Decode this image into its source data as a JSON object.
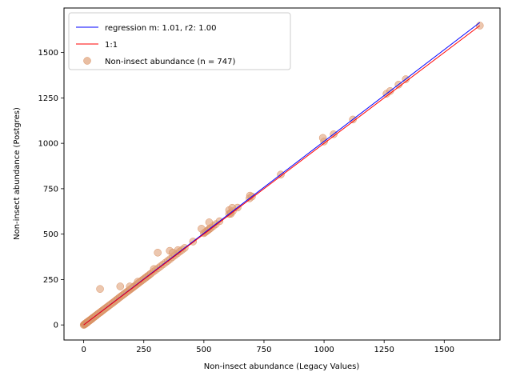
{
  "chart_data": {
    "type": "scatter",
    "xlabel": "Non-insect abundance (Legacy Values)",
    "ylabel": "Non-insect abundance (Postgres)",
    "xlim": [
      -82,
      1732
    ],
    "ylim": [
      -83,
      1745
    ],
    "xticks": [
      0,
      250,
      500,
      750,
      1000,
      1250,
      1500
    ],
    "yticks": [
      0,
      250,
      500,
      750,
      1000,
      1250,
      1500
    ],
    "grid": false,
    "legend_position": "upper-left",
    "lines": [
      {
        "name": "regression m: 1.01, r2: 1.00",
        "color": "#0000ff",
        "x": [
          0,
          1648
        ],
        "y": [
          0,
          1665
        ]
      },
      {
        "name": "1:1",
        "color": "#ff0000",
        "x": [
          0,
          1648
        ],
        "y": [
          0,
          1648
        ]
      }
    ],
    "scatter": {
      "name": "Non-insect abundance (n = 747)",
      "color": "#e0a27a",
      "points": [
        [
          0,
          0
        ],
        [
          2,
          3
        ],
        [
          3,
          2
        ],
        [
          4,
          5
        ],
        [
          5,
          4
        ],
        [
          6,
          7
        ],
        [
          7,
          6
        ],
        [
          8,
          8
        ],
        [
          9,
          10
        ],
        [
          10,
          9
        ],
        [
          11,
          12
        ],
        [
          12,
          11
        ],
        [
          13,
          14
        ],
        [
          14,
          13
        ],
        [
          15,
          15
        ],
        [
          16,
          17
        ],
        [
          17,
          16
        ],
        [
          18,
          19
        ],
        [
          20,
          20
        ],
        [
          22,
          21
        ],
        [
          24,
          25
        ],
        [
          26,
          26
        ],
        [
          28,
          27
        ],
        [
          30,
          31
        ],
        [
          32,
          32
        ],
        [
          34,
          33
        ],
        [
          36,
          37
        ],
        [
          38,
          38
        ],
        [
          40,
          41
        ],
        [
          42,
          42
        ],
        [
          44,
          44
        ],
        [
          46,
          47
        ],
        [
          48,
          48
        ],
        [
          50,
          51
        ],
        [
          52,
          52
        ],
        [
          55,
          56
        ],
        [
          58,
          59
        ],
        [
          60,
          61
        ],
        [
          63,
          64
        ],
        [
          66,
          67
        ],
        [
          70,
          70
        ],
        [
          73,
          74
        ],
        [
          76,
          77
        ],
        [
          80,
          81
        ],
        [
          84,
          85
        ],
        [
          88,
          89
        ],
        [
          92,
          93
        ],
        [
          96,
          97
        ],
        [
          100,
          101
        ],
        [
          105,
          106
        ],
        [
          110,
          111
        ],
        [
          115,
          116
        ],
        [
          120,
          121
        ],
        [
          125,
          126
        ],
        [
          130,
          131
        ],
        [
          135,
          137
        ],
        [
          140,
          141
        ],
        [
          145,
          147
        ],
        [
          150,
          152
        ],
        [
          155,
          157
        ],
        [
          160,
          162
        ],
        [
          165,
          167
        ],
        [
          170,
          172
        ],
        [
          175,
          177
        ],
        [
          180,
          182
        ],
        [
          185,
          187
        ],
        [
          190,
          192
        ],
        [
          195,
          197
        ],
        [
          200,
          202
        ],
        [
          205,
          207
        ],
        [
          210,
          212
        ],
        [
          215,
          217
        ],
        [
          220,
          222
        ],
        [
          225,
          227
        ],
        [
          230,
          232
        ],
        [
          235,
          238
        ],
        [
          240,
          242
        ],
        [
          245,
          248
        ],
        [
          250,
          252
        ],
        [
          255,
          258
        ],
        [
          260,
          262
        ],
        [
          265,
          268
        ],
        [
          270,
          272
        ],
        [
          275,
          278
        ],
        [
          280,
          283
        ],
        [
          290,
          293
        ],
        [
          300,
          303
        ],
        [
          310,
          313
        ],
        [
          320,
          323
        ],
        [
          330,
          333
        ],
        [
          340,
          343
        ],
        [
          350,
          353
        ],
        [
          360,
          363
        ],
        [
          370,
          374
        ],
        [
          380,
          384
        ],
        [
          390,
          394
        ],
        [
          400,
          404
        ],
        [
          410,
          414
        ],
        [
          420,
          424
        ],
        [
          455,
          459
        ],
        [
          500,
          505
        ],
        [
          505,
          510
        ],
        [
          510,
          515
        ],
        [
          515,
          520
        ],
        [
          520,
          525
        ],
        [
          525,
          530
        ],
        [
          530,
          535
        ],
        [
          540,
          545
        ],
        [
          550,
          555
        ],
        [
          565,
          571
        ],
        [
          605,
          611
        ],
        [
          612,
          618
        ],
        [
          620,
          626
        ],
        [
          640,
          646
        ],
        [
          690,
          697
        ],
        [
          700,
          707
        ],
        [
          820,
          828
        ],
        [
          1000,
          1010
        ],
        [
          1040,
          1050
        ],
        [
          1120,
          1131
        ],
        [
          1260,
          1273
        ],
        [
          1275,
          1288
        ],
        [
          1310,
          1323
        ],
        [
          1340,
          1353
        ],
        [
          1648,
          1648
        ],
        [
          68,
          198
        ],
        [
          152,
          212
        ],
        [
          192,
          212
        ],
        [
          225,
          238
        ],
        [
          292,
          308
        ],
        [
          308,
          398
        ],
        [
          358,
          408
        ],
        [
          370,
          398
        ],
        [
          392,
          412
        ],
        [
          490,
          530
        ],
        [
          522,
          565
        ],
        [
          605,
          632
        ],
        [
          612,
          612
        ],
        [
          618,
          645
        ],
        [
          692,
          712
        ],
        [
          995,
          1030
        ]
      ]
    }
  }
}
